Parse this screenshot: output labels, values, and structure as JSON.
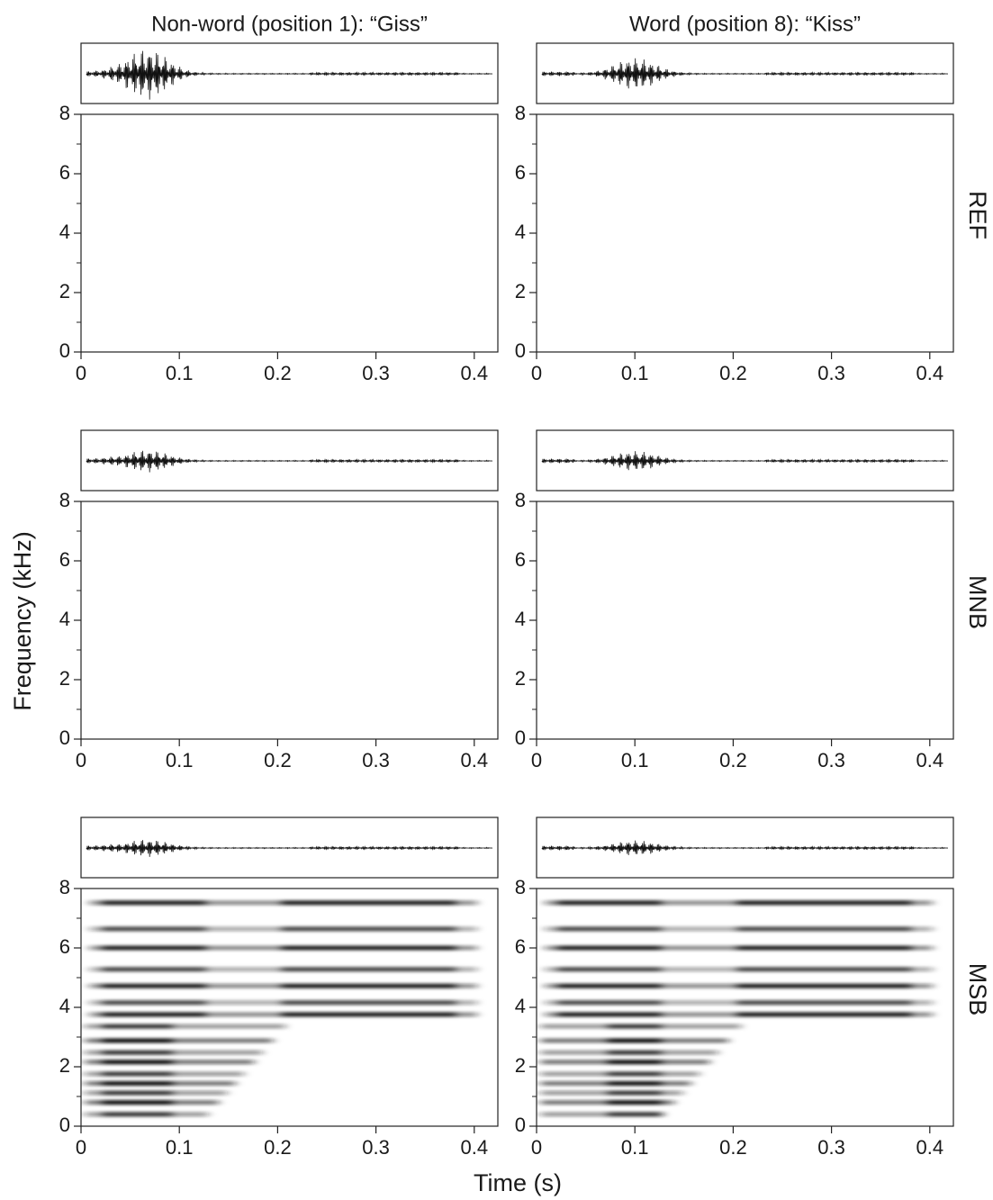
{
  "chart_data": {
    "type": "spectrogram",
    "columns": [
      "Non-word (position 1): “Giss”",
      "Word (position 8): “Kiss”"
    ],
    "rows": [
      "REF",
      "MNB",
      "MSB"
    ],
    "xlabel": "Time (s)",
    "ylabel": "Frequency (kHz)",
    "xlim": [
      0,
      0.424
    ],
    "xticks": [
      0,
      0.1,
      0.2,
      0.3,
      0.4
    ],
    "ylim": [
      0,
      8
    ],
    "yticks": [
      0,
      2,
      4,
      6,
      8
    ],
    "yminor": [
      1,
      3,
      5,
      7
    ]
  }
}
